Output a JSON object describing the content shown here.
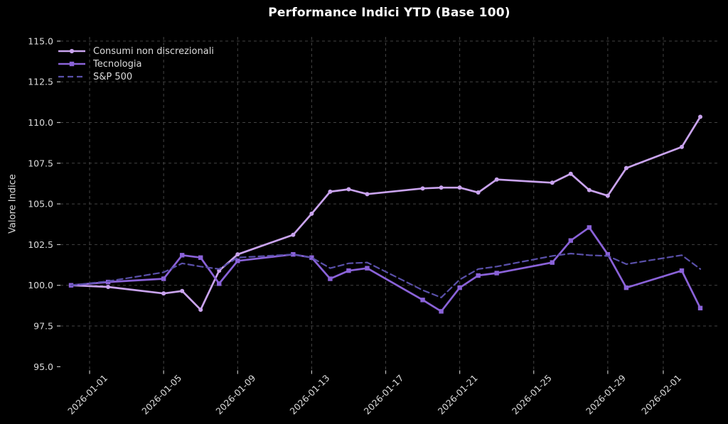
{
  "page": {
    "title": "Performance Indici YTD (Base 100)"
  },
  "chart_data": {
    "type": "line",
    "title": "Performance Indici YTD (Base 100)",
    "xlabel": "",
    "ylabel": "Valore Indice",
    "x_dates": [
      "2025-12-31",
      "2026-01-02",
      "2026-01-05",
      "2026-01-06",
      "2026-01-07",
      "2026-01-08",
      "2026-01-09",
      "2026-01-12",
      "2026-01-13",
      "2026-01-14",
      "2026-01-15",
      "2026-01-16",
      "2026-01-19",
      "2026-01-20",
      "2026-01-21",
      "2026-01-22",
      "2026-01-23",
      "2026-01-26",
      "2026-01-27",
      "2026-01-28",
      "2026-01-29",
      "2026-01-30",
      "2026-02-02",
      "2026-02-03"
    ],
    "x_days": [
      0,
      2,
      5,
      6,
      7,
      8,
      9,
      12,
      13,
      14,
      15,
      16,
      19,
      20,
      21,
      22,
      23,
      26,
      27,
      28,
      29,
      30,
      33,
      34
    ],
    "series": [
      {
        "name": "Consumi non discrezionali",
        "color": "#c9a3ee",
        "marker": "circle",
        "line": "solid",
        "values": [
          100.0,
          99.9,
          99.5,
          99.65,
          98.5,
          100.9,
          101.9,
          103.1,
          104.4,
          105.75,
          105.9,
          105.6,
          105.95,
          106.0,
          106.0,
          105.7,
          106.5,
          106.3,
          106.85,
          105.85,
          105.5,
          107.2,
          108.5,
          110.35
        ]
      },
      {
        "name": "Tecnologia",
        "color": "#8a62d8",
        "marker": "square",
        "line": "solid",
        "values": [
          100.0,
          100.2,
          100.4,
          101.85,
          101.7,
          100.1,
          101.5,
          101.9,
          101.7,
          100.4,
          100.9,
          101.05,
          99.1,
          98.4,
          99.85,
          100.6,
          100.75,
          101.4,
          102.75,
          103.55,
          101.9,
          99.85,
          100.9,
          98.6
        ]
      },
      {
        "name": "S&P 500",
        "color": "#5a50aa",
        "marker": "none",
        "line": "dashed",
        "values": [
          100.0,
          100.25,
          100.8,
          101.35,
          101.15,
          101.0,
          101.7,
          101.9,
          101.7,
          101.05,
          101.35,
          101.4,
          99.7,
          99.25,
          100.35,
          101.0,
          101.15,
          101.8,
          101.95,
          101.85,
          101.8,
          101.3,
          101.85,
          101.0
        ]
      }
    ],
    "x_ticks": [
      {
        "day": 1,
        "label": "2026-01-01"
      },
      {
        "day": 5,
        "label": "2026-01-05"
      },
      {
        "day": 9,
        "label": "2026-01-09"
      },
      {
        "day": 13,
        "label": "2026-01-13"
      },
      {
        "day": 17,
        "label": "2026-01-17"
      },
      {
        "day": 21,
        "label": "2026-01-21"
      },
      {
        "day": 25,
        "label": "2026-01-25"
      },
      {
        "day": 29,
        "label": "2026-01-29"
      },
      {
        "day": 32,
        "label": "2026-02-01"
      }
    ],
    "y_ticks": [
      95.0,
      97.5,
      100.0,
      102.5,
      105.0,
      107.5,
      110.0,
      112.5,
      115.0
    ],
    "ylim": [
      94.8,
      115.3
    ],
    "grid": true,
    "legend_position": "upper left",
    "colors": {
      "background": "#000000",
      "grid": "#434343",
      "text": "#dcdcdc",
      "title": "#ffffff",
      "tick": "#c0c0c0"
    }
  }
}
